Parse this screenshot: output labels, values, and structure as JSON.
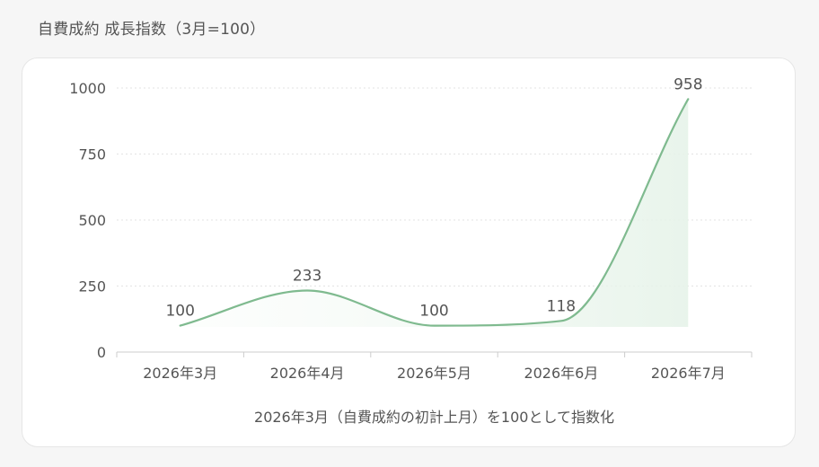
{
  "header": {
    "title": "自費成約 成長指数（3月=100）"
  },
  "chart_data": {
    "type": "area",
    "title": "自費成約 成長指数（3月=100）",
    "categories": [
      "2026年3月",
      "2026年4月",
      "2026年5月",
      "2026年6月",
      "2026年7月"
    ],
    "series": [
      {
        "values": [
          100,
          233,
          100,
          118,
          958
        ]
      }
    ],
    "data_labels": [
      "100",
      "233",
      "100",
      "118",
      "958"
    ],
    "xlabel": "2026年3月（自費成約の初計上月）を100として指数化",
    "ylabel": "",
    "ylim": [
      0,
      1000
    ],
    "yticks": [
      0,
      250,
      500,
      750,
      1000
    ],
    "ytick_labels": [
      "0",
      "250",
      "500",
      "750",
      "1000"
    ],
    "grid": true,
    "smooth": true,
    "colors": {
      "line": "#7fba8f",
      "fill": "#eef7f0",
      "grid": "#e3e3e3",
      "axis": "#cccccc"
    }
  }
}
